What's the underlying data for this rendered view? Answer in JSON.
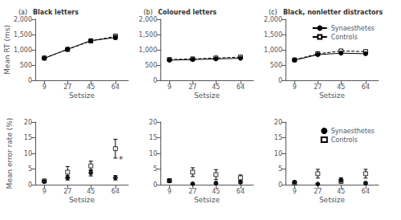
{
  "chart_data": [
    {
      "type": "line",
      "title": "Black letters",
      "annotations": [
        {
          "text": "(a)"
        }
      ],
      "x": [
        9,
        27,
        45,
        64
      ],
      "xlabel": "Setsize",
      "ylabel": "Mean RT (ms)",
      "xlim": [
        2,
        74
      ],
      "xticks": [
        9,
        27,
        45,
        64
      ],
      "ylim": [
        0,
        2000
      ],
      "yticks": [
        0,
        500,
        1000,
        1500,
        2000
      ],
      "grid": false,
      "series": [
        {
          "name": "Synaesthetes",
          "color": "#000000",
          "marker": "circle",
          "line_style": "solid",
          "values": [
            720,
            1020,
            1300,
            1400
          ],
          "errors": [
            25,
            40,
            55,
            60
          ]
        },
        {
          "name": "Controls",
          "color": "#000000",
          "marker": "open_square",
          "line_style": "dashed",
          "values": [
            730,
            1010,
            1290,
            1440
          ],
          "errors": [
            30,
            45,
            65,
            75
          ]
        }
      ]
    },
    {
      "type": "line",
      "title": "Coloured letters",
      "annotations": [
        {
          "text": "(b)"
        }
      ],
      "x": [
        9,
        27,
        45,
        64
      ],
      "xlabel": "Setsize",
      "xlim": [
        2,
        74
      ],
      "xticks": [
        9,
        27,
        45,
        64
      ],
      "ylim": [
        0,
        2000
      ],
      "yticks": [
        0,
        500,
        1000,
        1500,
        2000
      ],
      "grid": false,
      "series": [
        {
          "name": "Synaesthetes",
          "color": "#000000",
          "marker": "circle",
          "line_style": "solid",
          "values": [
            660,
            680,
            700,
            720
          ],
          "errors": [
            15,
            15,
            18,
            20
          ]
        },
        {
          "name": "Controls",
          "color": "#000000",
          "marker": "open_square",
          "line_style": "dashed",
          "values": [
            680,
            700,
            730,
            760
          ],
          "errors": [
            18,
            18,
            20,
            22
          ]
        }
      ]
    },
    {
      "type": "line",
      "title": "Black, nonletter distractors",
      "annotations": [
        {
          "text": "(c)"
        }
      ],
      "x": [
        9,
        27,
        45,
        64
      ],
      "xlabel": "Setsize",
      "xlim": [
        2,
        74
      ],
      "xticks": [
        9,
        27,
        45,
        64
      ],
      "ylim": [
        0,
        2000
      ],
      "yticks": [
        0,
        500,
        1000,
        1500,
        2000
      ],
      "grid": false,
      "legend": "upper right",
      "series": [
        {
          "name": "Synaesthetes",
          "color": "#000000",
          "marker": "circle",
          "line_style": "solid",
          "values": [
            660,
            840,
            890,
            870
          ],
          "errors": [
            20,
            35,
            45,
            40
          ]
        },
        {
          "name": "Controls",
          "color": "#000000",
          "marker": "open_square",
          "line_style": "dashed",
          "values": [
            670,
            870,
            960,
            940
          ],
          "errors": [
            25,
            45,
            50,
            45
          ]
        }
      ]
    },
    {
      "type": "scatter",
      "annotations": [
        {
          "text": "*",
          "x": 64,
          "y": 8.0
        }
      ],
      "x": [
        9,
        27,
        45,
        64
      ],
      "xlabel": "Setsize",
      "ylabel": "Mean error rate (%)",
      "xlim": [
        2,
        74
      ],
      "xticks": [
        9,
        27,
        45,
        64
      ],
      "ylim": [
        0,
        20
      ],
      "yticks": [
        0,
        5,
        10,
        15,
        20
      ],
      "grid": false,
      "series": [
        {
          "name": "Synaesthetes",
          "color": "#000000",
          "marker": "circle",
          "values": [
            1.0,
            2.2,
            3.8,
            2.2
          ],
          "errors": [
            0.4,
            0.7,
            1.0,
            0.7
          ]
        },
        {
          "name": "Controls",
          "color": "#000000",
          "marker": "open_square",
          "values": [
            1.2,
            4.0,
            6.0,
            11.5
          ],
          "errors": [
            0.4,
            1.8,
            1.5,
            3.0
          ]
        }
      ]
    },
    {
      "type": "scatter",
      "x": [
        9,
        27,
        45,
        64
      ],
      "xlabel": "Setsize",
      "xlim": [
        2,
        74
      ],
      "xticks": [
        9,
        27,
        45,
        64
      ],
      "ylim": [
        0,
        20
      ],
      "yticks": [
        0,
        5,
        10,
        15,
        20
      ],
      "grid": false,
      "series": [
        {
          "name": "Synaesthetes",
          "color": "#000000",
          "marker": "circle",
          "values": [
            1.2,
            0.3,
            0.5,
            0.8
          ],
          "errors": [
            0.4,
            0.2,
            0.3,
            0.4
          ]
        },
        {
          "name": "Controls",
          "color": "#000000",
          "marker": "open_square",
          "values": [
            1.3,
            4.0,
            3.2,
            2.2
          ],
          "errors": [
            0.5,
            1.4,
            1.6,
            0.9
          ]
        }
      ]
    },
    {
      "type": "scatter",
      "x": [
        9,
        27,
        45,
        64
      ],
      "xlabel": "Setsize",
      "xlim": [
        2,
        74
      ],
      "xticks": [
        9,
        27,
        45,
        64
      ],
      "ylim": [
        0,
        20
      ],
      "yticks": [
        0,
        5,
        10,
        15,
        20
      ],
      "grid": false,
      "legend": "upper right",
      "series": [
        {
          "name": "Synaesthetes",
          "color": "#000000",
          "marker": "circle",
          "values": [
            0.8,
            0.2,
            1.5,
            0.5
          ],
          "errors": [
            0.4,
            0.2,
            0.7,
            0.3
          ]
        },
        {
          "name": "Controls",
          "color": "#000000",
          "marker": "open_square",
          "values": [
            0.5,
            3.5,
            1.0,
            3.5
          ],
          "errors": [
            0.3,
            1.4,
            0.5,
            1.4
          ]
        }
      ]
    }
  ]
}
